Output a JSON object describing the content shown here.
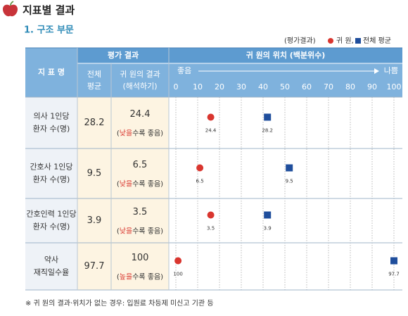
{
  "header": {
    "title": "지표별 결과",
    "section": "1. 구조 부문"
  },
  "legend": {
    "label": "(평가결과)",
    "hospital": "귀 원,",
    "average": "전체 평균"
  },
  "table": {
    "headers": {
      "indicator": "지 표 명",
      "evaluation": "평가 결과",
      "average": [
        "전체",
        "평균"
      ],
      "result": [
        "귀 원의 결과",
        "(해석하기)"
      ],
      "position": "귀 원의 위치 (백분위수)",
      "good": "좋음",
      "bad": "나쁨"
    },
    "ticks": [
      0,
      10,
      20,
      30,
      40,
      50,
      60,
      70,
      80,
      90,
      100
    ],
    "rows": [
      {
        "name": [
          "의사 1인당",
          "환자 수(명)"
        ],
        "average": 28.2,
        "result": 24.4,
        "note": [
          "(",
          "낮을",
          "수록 좋음)"
        ],
        "hospital_pct": 16,
        "average_pct": 42
      },
      {
        "name": [
          "간호사 1인당",
          "환자 수(명)"
        ],
        "average": 9.5,
        "result": 6.5,
        "note": [
          "(",
          "낮을",
          "수록 좋음)"
        ],
        "hospital_pct": 11,
        "average_pct": 52
      },
      {
        "name": [
          "간호인력 1인당",
          "환자 수(명)"
        ],
        "average": 3.9,
        "result": 3.5,
        "note": [
          "(",
          "낮을",
          "수록 좋음)"
        ],
        "hospital_pct": 16,
        "average_pct": 42
      },
      {
        "name": [
          "약사",
          "재직일수율"
        ],
        "average": 97.7,
        "result": 100,
        "note": [
          "(",
          "높을",
          "수록 좋음)"
        ],
        "hospital_pct": 1,
        "average_pct": 100
      }
    ]
  },
  "footnote": "※ 귀 원의 결과·위치가 없는 경우: 입원료 차등제 미신고 기관 등"
}
